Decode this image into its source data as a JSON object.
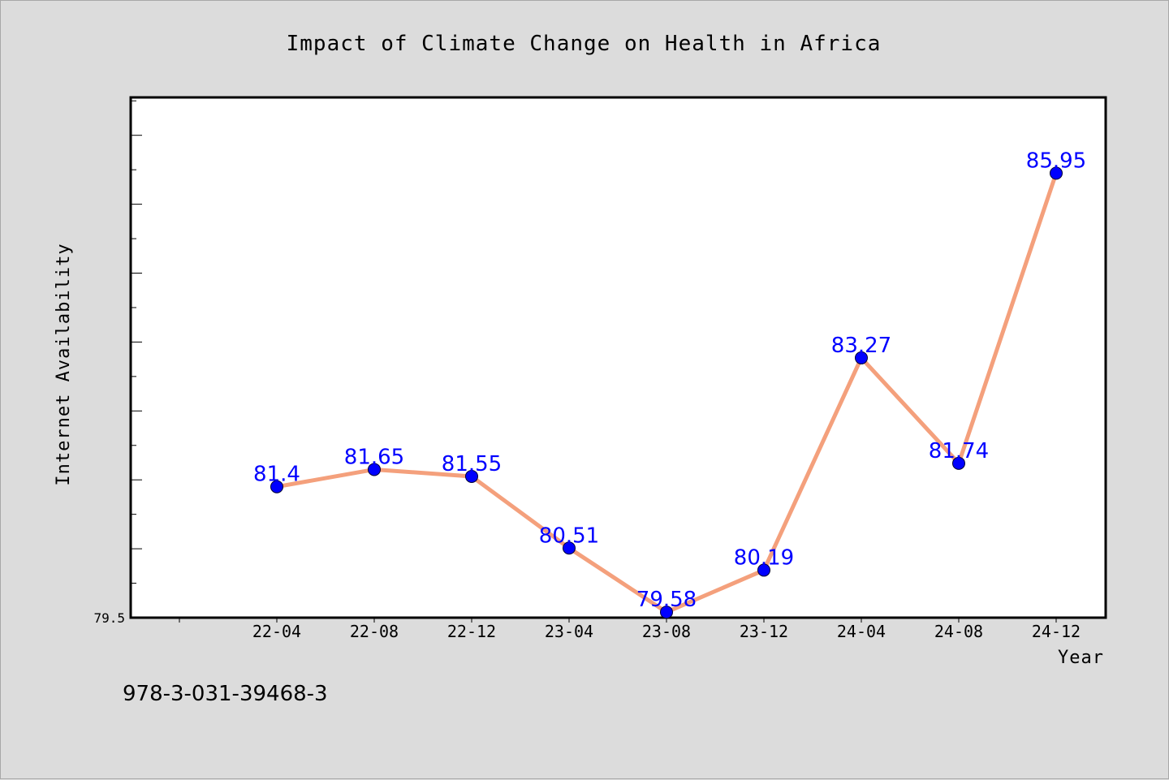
{
  "chart_data": {
    "type": "line",
    "title": "Impact of Climate Change on Health in Africa",
    "xlabel": "Year",
    "ylabel": "Internet Availability",
    "categories": [
      "22-04",
      "22-08",
      "22-12",
      "23-04",
      "23-08",
      "23-12",
      "24-04",
      "24-08",
      "24-12"
    ],
    "series": [
      {
        "values": [
          81.4,
          81.65,
          81.55,
          80.51,
          79.58,
          80.19,
          83.27,
          81.74,
          85.95
        ],
        "labels": [
          "81.4",
          "81.65",
          "81.55",
          "80.51",
          "79.58",
          "80.19",
          "83.27",
          "81.74",
          "85.95"
        ]
      }
    ],
    "ylim": [
      79.5,
      87.05
    ],
    "ytick_label": "79.5",
    "grid": false,
    "line_color": "#f4a07c",
    "marker_color": "#0000ff",
    "label_color": "#0000ff"
  },
  "footer": {
    "isbn": "978-3-031-39468-3"
  }
}
